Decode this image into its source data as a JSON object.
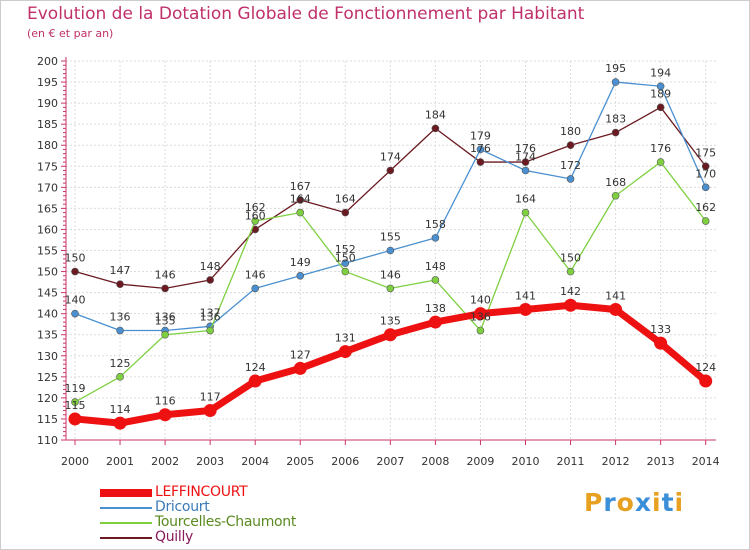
{
  "header": {
    "title": "Evolution de la Dotation Globale de Fonctionnement par Habitant",
    "subtitle": "(en € et par an)"
  },
  "logo": {
    "text": "Proxiti"
  },
  "chart_data": {
    "type": "line",
    "title": "Evolution de la Dotation Globale de Fonctionnement par Habitant",
    "subtitle": "(en € et par an)",
    "xlabel": "",
    "ylabel": "",
    "ylim": [
      110,
      200
    ],
    "ytick_step": 5,
    "grid": true,
    "legend_position": "bottom-left",
    "categories": [
      "2000",
      "2001",
      "2002",
      "2003",
      "2004",
      "2005",
      "2006",
      "2007",
      "2008",
      "2009",
      "2010",
      "2011",
      "2012",
      "2013",
      "2014"
    ],
    "series": [
      {
        "name": "Quilly",
        "color": "#6b1a22",
        "values": [
          150,
          147,
          146,
          148,
          160,
          167,
          164,
          174,
          184,
          176,
          176,
          180,
          183,
          189,
          175
        ]
      },
      {
        "name": "Dricourt",
        "color": "#4a90d0",
        "values": [
          140,
          136,
          136,
          137,
          146,
          149,
          152,
          155,
          158,
          179,
          174,
          172,
          195,
          194,
          170
        ]
      },
      {
        "name": "Tourcelles-Chaumont",
        "color": "#7ed040",
        "values": [
          119,
          125,
          135,
          136,
          162,
          164,
          150,
          146,
          148,
          136,
          164,
          150,
          168,
          176,
          162
        ]
      },
      {
        "name": "LEFFINCOURT",
        "color": "#ee1111",
        "values": [
          115,
          114,
          116,
          117,
          124,
          127,
          131,
          135,
          138,
          140,
          141,
          142,
          141,
          133,
          124
        ]
      }
    ]
  }
}
